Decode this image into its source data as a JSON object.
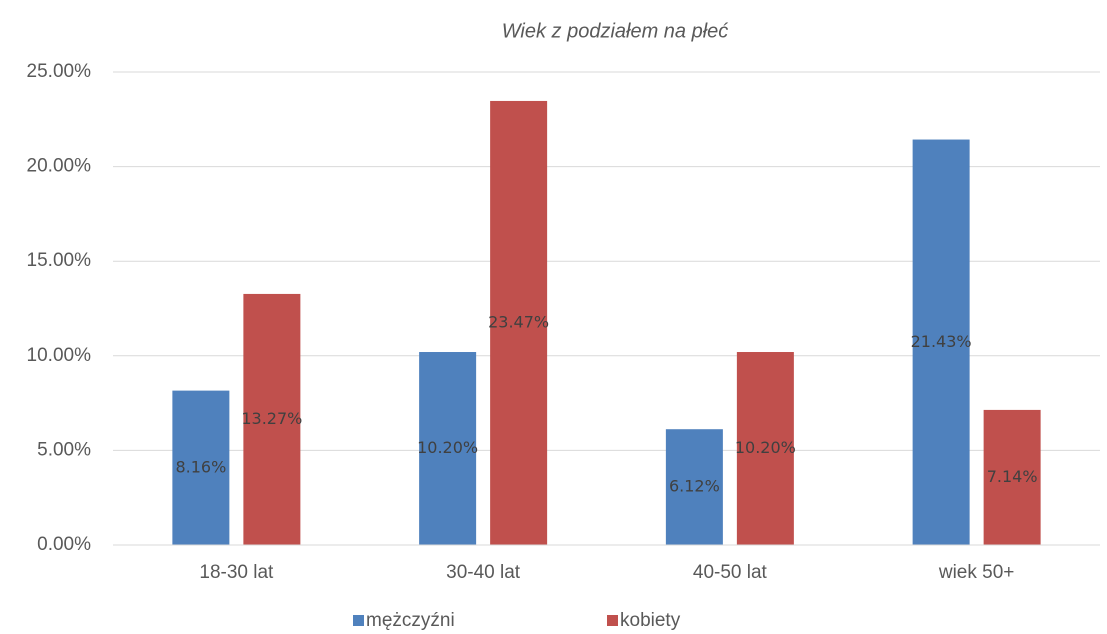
{
  "chart_data": {
    "type": "bar",
    "title": "Wiek z podziałem na płeć",
    "categories": [
      "18-30 lat",
      "30-40 lat",
      "40-50 lat",
      "wiek 50+"
    ],
    "series": [
      {
        "name": "mężczyźni",
        "color": "#4f81bd",
        "values": [
          8.16,
          10.2,
          6.12,
          21.43
        ],
        "value_labels": [
          "8.16%",
          "10.20%",
          "6.12%",
          "21.43%"
        ]
      },
      {
        "name": "kobiety",
        "color": "#c0504d",
        "values": [
          13.27,
          23.47,
          10.2,
          7.14
        ],
        "value_labels": [
          "13.27%",
          "23.47%",
          "10.20%",
          "7.14%"
        ]
      }
    ],
    "ylim": [
      0,
      25
    ],
    "yticks": [
      {
        "value": 0,
        "label": "0.00%"
      },
      {
        "value": 5,
        "label": "5.00%"
      },
      {
        "value": 10,
        "label": "10.00%"
      },
      {
        "value": 15,
        "label": "15.00%"
      },
      {
        "value": 20,
        "label": "20.00%"
      },
      {
        "value": 25,
        "label": "25.00%"
      }
    ],
    "grid": true,
    "legend": "bottom"
  }
}
